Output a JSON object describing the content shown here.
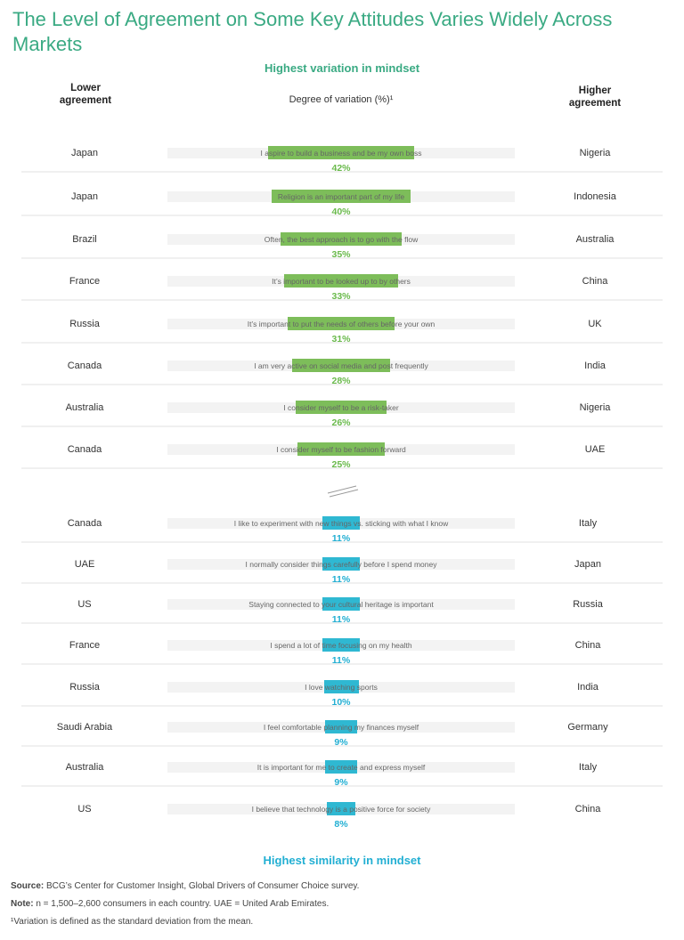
{
  "title": "The Level of Agreement on Some Key Attitudes Varies Widely Across Markets",
  "top_section_title": "Highest variation in mindset",
  "bottom_section_title": "Highest similarity in mindset",
  "headers": {
    "left": "Lower agreement",
    "middle": "Degree of variation (%)¹",
    "right": "Higher agreement"
  },
  "colors": {
    "title": "#3aaa83",
    "high": "#7dbd5a",
    "low": "#2fb8d2",
    "high_text": "#6aba4c",
    "low_text": "#22afd3"
  },
  "chart_data": {
    "type": "bar",
    "xlabel": "Degree of variation (%)¹",
    "xlim": [
      0,
      100
    ],
    "rows": [
      {
        "lower": "Japan",
        "statement": "I aspire to build a business and be my own boss",
        "value": 42,
        "label": "42%",
        "higher": "Nigeria",
        "group": "high"
      },
      {
        "lower": "Japan",
        "statement": "Religion is an important part of my life",
        "value": 40,
        "label": "40%",
        "higher": "Indonesia",
        "group": "high"
      },
      {
        "lower": "Brazil",
        "statement": "Often, the best approach is to go with the flow",
        "value": 35,
        "label": "35%",
        "higher": "Australia",
        "group": "high"
      },
      {
        "lower": "France",
        "statement": "It’s important to be looked up to by others",
        "value": 33,
        "label": "33%",
        "higher": "China",
        "group": "high"
      },
      {
        "lower": "Russia",
        "statement": "It’s important to put the needs of others before your own",
        "value": 31,
        "label": "31%",
        "higher": "UK",
        "group": "high"
      },
      {
        "lower": "Canada",
        "statement": "I am very active on social media and post frequently",
        "value": 28,
        "label": "28%",
        "higher": "India",
        "group": "high"
      },
      {
        "lower": "Australia",
        "statement": "I consider myself to be a risk-taker",
        "value": 26,
        "label": "26%",
        "higher": "Nigeria",
        "group": "high"
      },
      {
        "lower": "Canada",
        "statement": "I consider myself to be fashion forward",
        "value": 25,
        "label": "25%",
        "higher": "UAE",
        "group": "high"
      },
      {
        "lower": "Canada",
        "statement": "I like to experiment with new things vs. sticking with what I know",
        "value": 11,
        "label": "11%",
        "higher": "Italy",
        "group": "low"
      },
      {
        "lower": "UAE",
        "statement": "I normally consider things carefully before I spend money",
        "value": 11,
        "label": "11%",
        "higher": "Japan",
        "group": "low"
      },
      {
        "lower": "US",
        "statement": "Staying connected to your cultural heritage is important",
        "value": 11,
        "label": "11%",
        "higher": "Russia",
        "group": "low"
      },
      {
        "lower": "France",
        "statement": "I spend a lot of time focusing on my health",
        "value": 11,
        "label": "11%",
        "higher": "China",
        "group": "low"
      },
      {
        "lower": "Russia",
        "statement": "I love watching sports",
        "value": 10,
        "label": "10%",
        "higher": "India",
        "group": "low"
      },
      {
        "lower": "Saudi Arabia",
        "statement": "I feel comfortable planning my finances myself",
        "value": 9,
        "label": "9%",
        "higher": "Germany",
        "group": "low"
      },
      {
        "lower": "Australia",
        "statement": "It is important for me to create and express myself",
        "value": 9,
        "label": "9%",
        "higher": "Italy",
        "group": "low"
      },
      {
        "lower": "US",
        "statement": "I believe that technology is a positive force for society",
        "value": 8,
        "label": "8%",
        "higher": "China",
        "group": "low"
      }
    ]
  },
  "footnotes": {
    "source_label": "Source:",
    "source_text": " BCG’s Center for Customer Insight, Global Drivers of Consumer Choice survey.",
    "note_label": "Note:",
    "note_text": " n = 1,500–2,600 consumers in each country. UAE = United Arab Emirates.",
    "variation": "¹Variation is defined as the standard deviation from the mean."
  }
}
